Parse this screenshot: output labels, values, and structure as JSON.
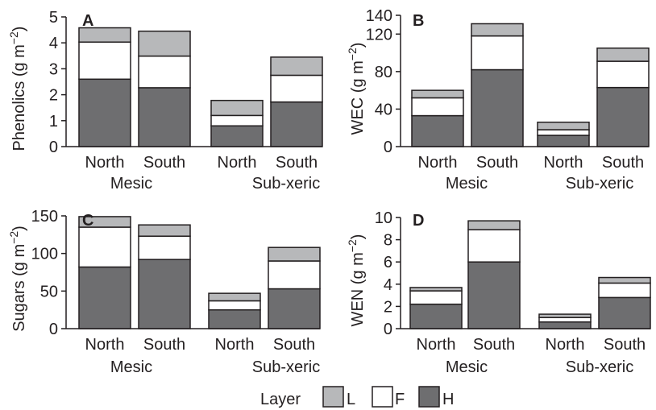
{
  "chart_data": [
    {
      "type": "bar",
      "stacked": true,
      "panel": "A",
      "ylabel": "Phenolics (g m−2)",
      "ylabel_main": "Phenolics (g m",
      "ylabel_sup": "−2",
      "ylim": [
        0,
        5
      ],
      "yticks": [
        0,
        1,
        2,
        3,
        4,
        5
      ],
      "categories": [
        "North",
        "South",
        "North",
        "South"
      ],
      "groups": [
        {
          "label": "Mesic",
          "members": [
            0,
            1
          ]
        },
        {
          "label": "Sub-xeric",
          "members": [
            2,
            3
          ]
        }
      ],
      "series": [
        {
          "name": "H",
          "values": [
            2.6,
            2.27,
            0.8,
            1.72
          ]
        },
        {
          "name": "F",
          "values": [
            1.43,
            1.22,
            0.4,
            1.03
          ]
        },
        {
          "name": "L",
          "values": [
            0.55,
            0.96,
            0.58,
            0.7
          ]
        }
      ]
    },
    {
      "type": "bar",
      "stacked": true,
      "panel": "B",
      "ylabel": "WEC (g m−2)",
      "ylabel_main": "WEC (g m",
      "ylabel_sup": "−2",
      "ylim": [
        0,
        140
      ],
      "yticks": [
        0,
        40,
        80,
        120,
        140
      ],
      "categories": [
        "North",
        "South",
        "North",
        "South"
      ],
      "groups": [
        {
          "label": "Mesic",
          "members": [
            0,
            1
          ]
        },
        {
          "label": "Sub-xeric",
          "members": [
            2,
            3
          ]
        }
      ],
      "series": [
        {
          "name": "H",
          "values": [
            33,
            82,
            12,
            63
          ]
        },
        {
          "name": "F",
          "values": [
            19,
            36,
            6,
            28
          ]
        },
        {
          "name": "L",
          "values": [
            8,
            13,
            8,
            14
          ]
        }
      ]
    },
    {
      "type": "bar",
      "stacked": true,
      "panel": "C",
      "ylabel": "Sugars (g m−2)",
      "ylabel_main": "Sugars (g m",
      "ylabel_sup": "−2",
      "ylim": [
        0,
        150
      ],
      "yticks": [
        0,
        50,
        100,
        150
      ],
      "categories": [
        "North",
        "South",
        "North",
        "South"
      ],
      "groups": [
        {
          "label": "Mesic",
          "members": [
            0,
            1
          ]
        },
        {
          "label": "Sub-xeric",
          "members": [
            2,
            3
          ]
        }
      ],
      "series": [
        {
          "name": "H",
          "values": [
            82,
            92,
            25,
            53
          ]
        },
        {
          "name": "F",
          "values": [
            53,
            31,
            12,
            37
          ]
        },
        {
          "name": "L",
          "values": [
            14,
            15,
            10,
            18
          ]
        }
      ]
    },
    {
      "type": "bar",
      "stacked": true,
      "panel": "D",
      "ylabel": "WEN (g m−2)",
      "ylabel_main": "WEN (g m",
      "ylabel_sup": "−2",
      "ylim": [
        0,
        10
      ],
      "yticks": [
        0,
        2,
        4,
        6,
        8,
        10
      ],
      "categories": [
        "North",
        "South",
        "North",
        "South"
      ],
      "groups": [
        {
          "label": "Mesic",
          "members": [
            0,
            1
          ]
        },
        {
          "label": "Sub-xeric",
          "members": [
            2,
            3
          ]
        }
      ],
      "series": [
        {
          "name": "H",
          "values": [
            2.2,
            6.0,
            0.6,
            2.8
          ]
        },
        {
          "name": "F",
          "values": [
            1.2,
            2.9,
            0.4,
            1.3
          ]
        },
        {
          "name": "L",
          "values": [
            0.3,
            0.8,
            0.3,
            0.5
          ]
        }
      ]
    }
  ],
  "legend": {
    "title": "Layer",
    "items": [
      {
        "label": "L",
        "color": "#b7b8ba"
      },
      {
        "label": "F",
        "color": "#ffffff"
      },
      {
        "label": "H",
        "color": "#6e6e70"
      }
    ]
  },
  "colors": {
    "L": "#b7b8ba",
    "F": "#ffffff",
    "H": "#6e6e70",
    "stroke": "#231f20"
  }
}
